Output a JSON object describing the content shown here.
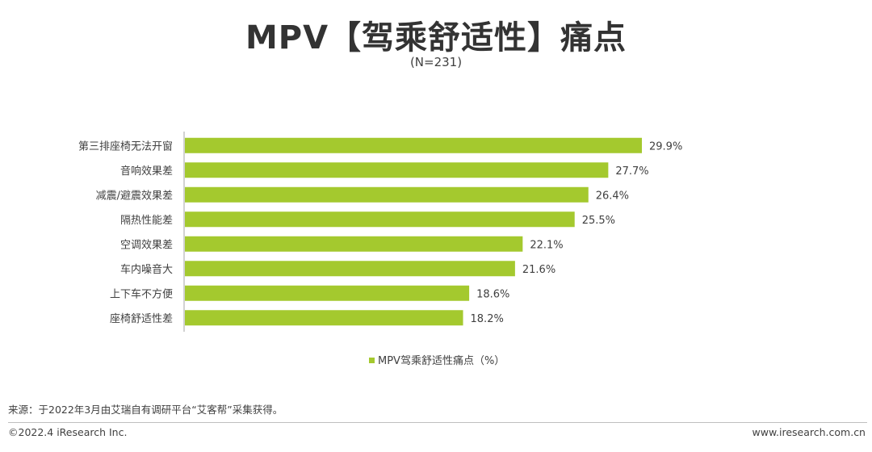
{
  "header": {
    "title": "MPV【驾乘舒适性】痛点",
    "subtitle": "(N=231)"
  },
  "chart_data": {
    "type": "bar",
    "orientation": "horizontal",
    "categories": [
      "第三排座椅无法开窗",
      "音响效果差",
      "减震/避震效果差",
      "隔热性能差",
      "空调效果差",
      "车内噪音大",
      "上下车不方便",
      "座椅舒适性差"
    ],
    "series": [
      {
        "name": "MPV驾乘舒适性痛点（%）",
        "values": [
          29.9,
          27.7,
          26.4,
          25.5,
          22.1,
          21.6,
          18.6,
          18.2
        ],
        "color": "#a4c92e"
      }
    ],
    "value_labels": [
      "29.9%",
      "27.7%",
      "26.4%",
      "25.5%",
      "22.1%",
      "21.6%",
      "18.6%",
      "18.2%"
    ],
    "xlim": [
      0,
      35
    ],
    "grid": false,
    "legend_position": "bottom"
  },
  "footer": {
    "source": "来源：于2022年3月由艾瑞自有调研平台“艾客帮”采集获得。",
    "copyright": "©2022.4 iResearch Inc.",
    "website": "www.iresearch.com.cn"
  }
}
